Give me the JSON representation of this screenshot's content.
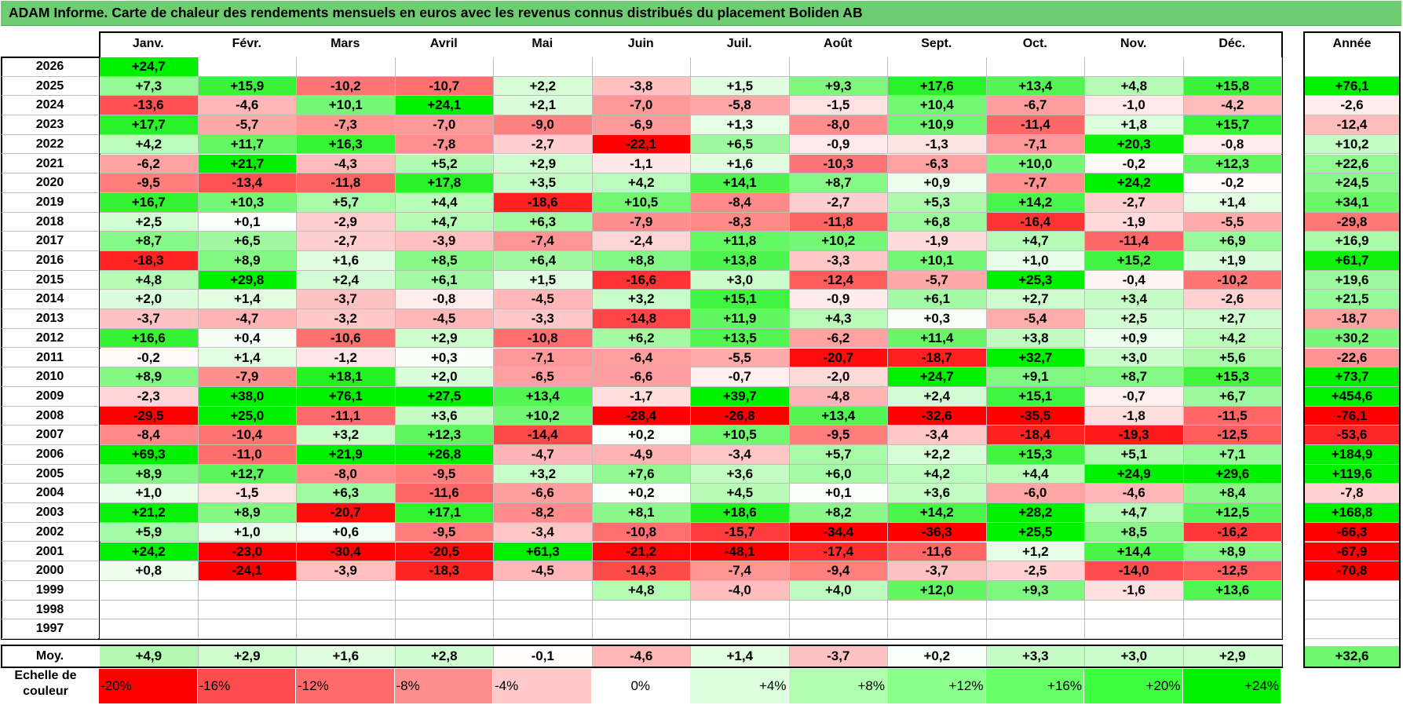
{
  "title": "ADAM Informe. Carte de chaleur des rendements mensuels en euros avec les revenus connus distribués du placement Boliden AB",
  "chart_data": {
    "type": "heatmap",
    "title": "ADAM Informe. Carte de chaleur des rendements mensuels en euros avec les revenus connus distribués du placement Boliden AB",
    "months": [
      "Janv.",
      "Févr.",
      "Mars",
      "Avril",
      "Mai",
      "Juin",
      "Juil.",
      "Août",
      "Sept.",
      "Oct.",
      "Nov.",
      "Déc."
    ],
    "annual_header": "Année",
    "rows": [
      {
        "year": "2026",
        "values": [
          "+24,7",
          "",
          "",
          "",
          "",
          "",
          "",
          "",
          "",
          "",
          "",
          ""
        ],
        "annual": ""
      },
      {
        "year": "2025",
        "values": [
          "+7,3",
          "+15,9",
          "-10,2",
          "-10,7",
          "+2,2",
          "-3,8",
          "+1,5",
          "+9,3",
          "+17,6",
          "+13,4",
          "+4,8",
          "+15,8"
        ],
        "annual": "+76,1"
      },
      {
        "year": "2024",
        "values": [
          "-13,6",
          "-4,6",
          "+10,1",
          "+24,1",
          "+2,1",
          "-7,0",
          "-5,8",
          "-1,5",
          "+10,4",
          "-6,7",
          "-1,0",
          "-4,2"
        ],
        "annual": "-2,6"
      },
      {
        "year": "2023",
        "values": [
          "+17,7",
          "-5,7",
          "-7,3",
          "-7,0",
          "-9,0",
          "-6,9",
          "+1,3",
          "-8,0",
          "+10,9",
          "-11,4",
          "+1,8",
          "+15,7"
        ],
        "annual": "-12,4"
      },
      {
        "year": "2022",
        "values": [
          "+4,2",
          "+11,7",
          "+16,3",
          "-7,8",
          "-2,7",
          "-22,1",
          "+6,5",
          "-0,9",
          "-1,3",
          "-7,1",
          "+20,3",
          "-0,8"
        ],
        "annual": "+10,2"
      },
      {
        "year": "2021",
        "values": [
          "-6,2",
          "+21,7",
          "-4,3",
          "+5,2",
          "+2,9",
          "-1,1",
          "+1,6",
          "-10,3",
          "-6,3",
          "+10,0",
          "-0,2",
          "+12,3"
        ],
        "annual": "+22,6"
      },
      {
        "year": "2020",
        "values": [
          "-9,5",
          "-13,4",
          "-11,8",
          "+17,8",
          "+3,5",
          "+4,2",
          "+14,1",
          "+8,7",
          "+0,9",
          "-7,7",
          "+24,2",
          "-0,2"
        ],
        "annual": "+24,5"
      },
      {
        "year": "2019",
        "values": [
          "+16,7",
          "+10,3",
          "+5,7",
          "+4,4",
          "-18,6",
          "+10,5",
          "-8,4",
          "-2,7",
          "+5,3",
          "+14,2",
          "-2,7",
          "+1,4"
        ],
        "annual": "+34,1"
      },
      {
        "year": "2018",
        "values": [
          "+2,5",
          "+0,1",
          "-2,9",
          "+4,7",
          "+6,3",
          "-7,9",
          "-8,3",
          "-11,8",
          "+6,8",
          "-16,4",
          "-1,9",
          "-5,5"
        ],
        "annual": "-29,8"
      },
      {
        "year": "2017",
        "values": [
          "+8,7",
          "+6,5",
          "-2,7",
          "-3,9",
          "-7,4",
          "-2,4",
          "+11,8",
          "+10,2",
          "-1,9",
          "+4,7",
          "-11,4",
          "+6,9"
        ],
        "annual": "+16,9"
      },
      {
        "year": "2016",
        "values": [
          "-18,3",
          "+8,9",
          "+1,6",
          "+8,5",
          "+6,4",
          "+8,8",
          "+13,8",
          "-3,3",
          "+10,1",
          "+1,0",
          "+15,2",
          "+1,9"
        ],
        "annual": "+61,7"
      },
      {
        "year": "2015",
        "values": [
          "+4,8",
          "+29,8",
          "+2,4",
          "+6,1",
          "+1,5",
          "-16,6",
          "+3,0",
          "-12,4",
          "-5,7",
          "+25,3",
          "-0,4",
          "-10,2"
        ],
        "annual": "+19,6"
      },
      {
        "year": "2014",
        "values": [
          "+2,0",
          "+1,4",
          "-3,7",
          "-0,8",
          "-4,5",
          "+3,2",
          "+15,1",
          "-0,9",
          "+6,1",
          "+2,7",
          "+3,4",
          "-2,6"
        ],
        "annual": "+21,5"
      },
      {
        "year": "2013",
        "values": [
          "-3,7",
          "-4,7",
          "-3,2",
          "-4,5",
          "-3,3",
          "-14,8",
          "+11,9",
          "+4,3",
          "+0,3",
          "-5,4",
          "+2,5",
          "+2,7"
        ],
        "annual": "-18,7"
      },
      {
        "year": "2012",
        "values": [
          "+16,6",
          "+0,4",
          "-10,6",
          "+2,9",
          "-10,8",
          "+6,2",
          "+13,5",
          "-6,2",
          "+11,4",
          "+3,8",
          "+0,9",
          "+4,2"
        ],
        "annual": "+30,2"
      },
      {
        "year": "2011",
        "values": [
          "-0,2",
          "+1,4",
          "-1,2",
          "+0,3",
          "-7,1",
          "-6,4",
          "-5,5",
          "-20,7",
          "-18,7",
          "+32,7",
          "+3,0",
          "+5,6"
        ],
        "annual": "-22,6"
      },
      {
        "year": "2010",
        "values": [
          "+8,9",
          "-7,9",
          "+18,1",
          "+2,0",
          "-6,5",
          "-6,6",
          "-0,7",
          "-2,0",
          "+24,7",
          "+9,1",
          "+8,7",
          "+15,3"
        ],
        "annual": "+73,7"
      },
      {
        "year": "2009",
        "values": [
          "-2,3",
          "+38,0",
          "+76,1",
          "+27,5",
          "+13,4",
          "-1,7",
          "+39,7",
          "-4,8",
          "+2,4",
          "+15,1",
          "-0,7",
          "+6,7"
        ],
        "annual": "+454,6"
      },
      {
        "year": "2008",
        "values": [
          "-29,5",
          "+25,0",
          "-11,1",
          "+3,6",
          "+10,2",
          "-28,4",
          "-26,8",
          "+13,4",
          "-32,6",
          "-35,5",
          "-1,8",
          "-11,5"
        ],
        "annual": "-76,1"
      },
      {
        "year": "2007",
        "values": [
          "-8,4",
          "-10,4",
          "+3,2",
          "+12,3",
          "-14,4",
          "+0,2",
          "+10,5",
          "-9,5",
          "-3,4",
          "-18,4",
          "-19,3",
          "-12,5"
        ],
        "annual": "-53,6"
      },
      {
        "year": "2006",
        "values": [
          "+69,3",
          "-11,0",
          "+21,9",
          "+26,8",
          "-4,7",
          "-4,9",
          "-3,4",
          "+5,7",
          "+2,2",
          "+15,3",
          "+5,1",
          "+7,1"
        ],
        "annual": "+184,9"
      },
      {
        "year": "2005",
        "values": [
          "+8,9",
          "+12,7",
          "-8,0",
          "-9,5",
          "+3,2",
          "+7,6",
          "+3,6",
          "+6,0",
          "+4,2",
          "+4,4",
          "+24,9",
          "+29,6"
        ],
        "annual": "+119,6"
      },
      {
        "year": "2004",
        "values": [
          "+1,0",
          "-1,5",
          "+6,3",
          "-11,6",
          "-6,6",
          "+0,2",
          "+4,5",
          "+0,1",
          "+3,6",
          "-6,0",
          "-4,6",
          "+8,4"
        ],
        "annual": "-7,8"
      },
      {
        "year": "2003",
        "values": [
          "+21,2",
          "+8,9",
          "-20,7",
          "+17,1",
          "-8,2",
          "+8,1",
          "+18,6",
          "+8,2",
          "+14,2",
          "+28,2",
          "+4,7",
          "+12,5"
        ],
        "annual": "+168,8"
      },
      {
        "year": "2002",
        "values": [
          "+5,9",
          "+1,0",
          "+0,6",
          "-9,5",
          "-3,4",
          "-10,8",
          "-15,7",
          "-34,4",
          "-36,3",
          "+25,5",
          "+8,5",
          "-16,2"
        ],
        "annual": "-66,3"
      },
      {
        "year": "2001",
        "values": [
          "+24,2",
          "-23,0",
          "-30,4",
          "-20,5",
          "+61,3",
          "-21,2",
          "-48,1",
          "-17,4",
          "-11,6",
          "+1,2",
          "+14,4",
          "+8,9"
        ],
        "annual": "-67,9"
      },
      {
        "year": "2000",
        "values": [
          "+0,8",
          "-24,1",
          "-3,9",
          "-18,3",
          "-4,5",
          "-14,3",
          "-7,4",
          "-9,4",
          "-3,7",
          "-2,5",
          "-14,0",
          "-12,5"
        ],
        "annual": "-70,8"
      },
      {
        "year": "1999",
        "values": [
          "",
          "",
          "",
          "",
          "",
          "+4,8",
          "-4,0",
          "+4,0",
          "+12,0",
          "+9,3",
          "-1,6",
          "+13,6"
        ],
        "annual": ""
      },
      {
        "year": "1998",
        "values": [
          "",
          "",
          "",
          "",
          "",
          "",
          "",
          "",
          "",
          "",
          "",
          ""
        ],
        "annual": ""
      },
      {
        "year": "1997",
        "values": [
          "",
          "",
          "",
          "",
          "",
          "",
          "",
          "",
          "",
          "",
          "",
          ""
        ],
        "annual": ""
      }
    ],
    "average": {
      "label": "Moy.",
      "values": [
        "+4,9",
        "+2,9",
        "+1,6",
        "+2,8",
        "-0,1",
        "-4,6",
        "+1,4",
        "-3,7",
        "+0,2",
        "+3,3",
        "+3,0",
        "+2,9"
      ],
      "annual": "+32,6"
    },
    "color_scale": {
      "label_line1": "Echelle de",
      "label_line2": "couleur",
      "stops": [
        "-20%",
        "-16%",
        "-12%",
        "-8%",
        "-4%",
        "0%",
        "+4%",
        "+8%",
        "+12%",
        "+16%",
        "+20%",
        "+24%"
      ],
      "colors": [
        "#ff0000",
        "#ff4c4c",
        "#ff6b6b",
        "#ff8f8f",
        "#ffc9c9",
        "#ffffff",
        "#ddffdd",
        "#b0ffb0",
        "#8cff8c",
        "#66ff66",
        "#3dff3d",
        "#00f000"
      ]
    }
  }
}
